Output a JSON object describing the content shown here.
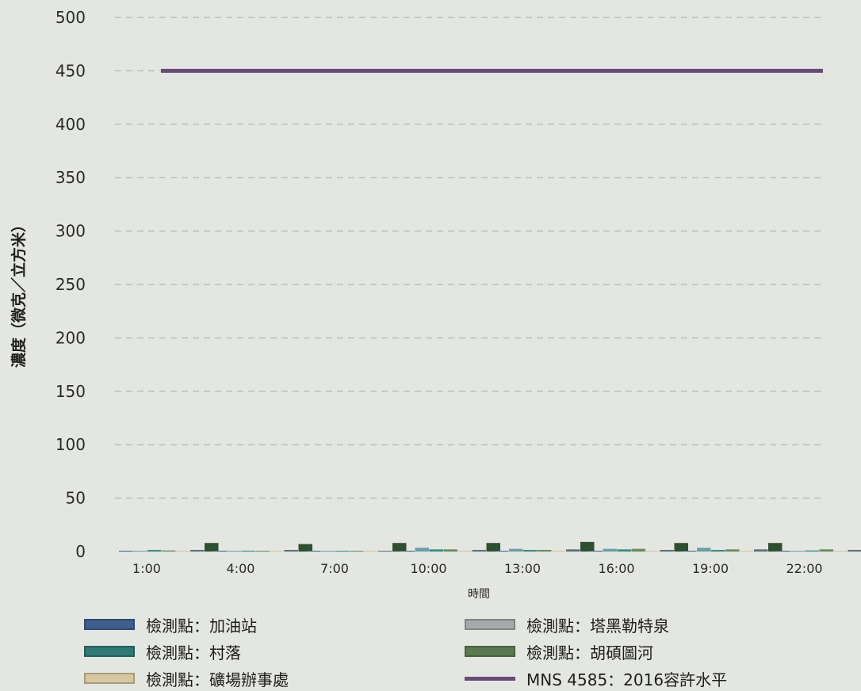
{
  "chart_data": {
    "type": "bar",
    "xlabel": "時間",
    "ylabel": "濃度（微克／立方米）",
    "ylim": [
      0,
      500
    ],
    "yticks": [
      0,
      50,
      100,
      150,
      200,
      250,
      300,
      350,
      400,
      450,
      500
    ],
    "grid": true,
    "legend_position": "bottom",
    "categories": [
      "1:00",
      "4:00",
      "7:00",
      "10:00",
      "13:00",
      "16:00",
      "19:00",
      "22:00"
    ],
    "series": [
      {
        "name": "檢測點：加油站",
        "color": "#3f5f8f",
        "values": [
          0.5,
          0.5,
          0.5,
          0.5,
          0.5,
          0.5,
          0.5,
          0.5
        ]
      },
      {
        "name": "檢測點：塔黑勒特泉",
        "color": "#6b9ea6",
        "values": [
          0.5,
          0.5,
          0.5,
          3.5,
          2.5,
          2.5,
          3.5,
          0.5
        ]
      },
      {
        "name": "檢測點：村落",
        "color": "#3b8a7e",
        "values": [
          1.5,
          0.8,
          0.5,
          2.0,
          1.5,
          2.0,
          1.5,
          1.0
        ]
      },
      {
        "name": "檢測點：胡碩圖河",
        "color": "#6a8a5a",
        "values": [
          1.0,
          0.5,
          0.5,
          2.0,
          1.5,
          2.5,
          2.0,
          2.0
        ]
      },
      {
        "name": "檢測點：礦場辦事處",
        "color": "#d4c49c",
        "values": [
          0.5,
          0.5,
          0.5,
          0.5,
          0.5,
          0.5,
          0.5,
          0.5
        ]
      },
      {
        "name": "",
        "color": "#5e6e78",
        "values": [
          1.5,
          1.5,
          0.5,
          1.5,
          2.0,
          1.5,
          2.0,
          1.5
        ]
      },
      {
        "name": "",
        "color": "#2e5030",
        "values": [
          8,
          7,
          8,
          8,
          9,
          8,
          8,
          8
        ]
      }
    ],
    "reference_line": {
      "name": "MNS 4585：2016容許水平",
      "value": 450,
      "color": "#6a4a7a"
    }
  },
  "legend": [
    {
      "label": "檢測點：加油站",
      "color": "#3f5f8f",
      "kind": "box"
    },
    {
      "label": "檢測點：塔黑勒特泉",
      "color": "#a6a9aa",
      "kind": "box"
    },
    {
      "label": "檢測點：村落",
      "color": "#2f7a75",
      "kind": "box"
    },
    {
      "label": "檢測點：胡碩圖河",
      "color": "#5c7a52",
      "kind": "box"
    },
    {
      "label": "檢測點：礦場辦事處",
      "color": "#d8c8a0",
      "kind": "box"
    },
    {
      "label": "MNS 4585：2016容許水平",
      "color": "#6a4a7a",
      "kind": "line"
    }
  ]
}
